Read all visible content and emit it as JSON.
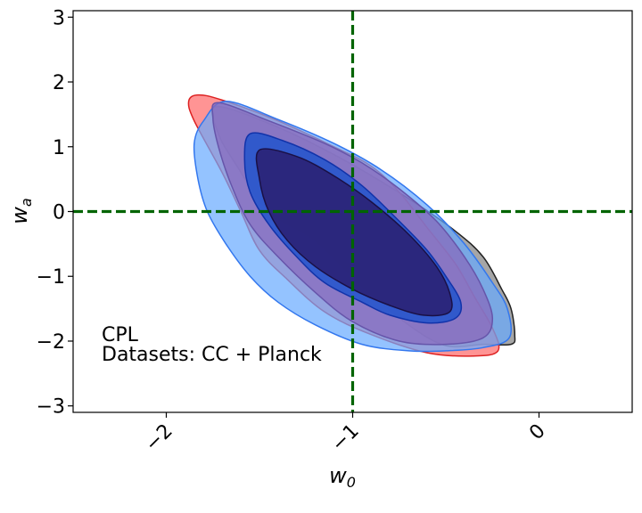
{
  "chart_data": {
    "type": "contour",
    "xlabel": "w",
    "xlabel_sub": "0",
    "ylabel": "w",
    "ylabel_sub": "a",
    "xlim": [
      -2.5,
      0.5
    ],
    "ylim": [
      -3.1,
      3.1
    ],
    "x_ticks": [
      -2,
      -1,
      0
    ],
    "x_tick_labels": [
      "−2",
      "−1",
      "0"
    ],
    "y_ticks": [
      -3,
      -2,
      -1,
      0,
      1,
      2,
      3
    ],
    "y_tick_labels": [
      "−3",
      "−2",
      "−1",
      "0",
      "1",
      "2",
      "3"
    ],
    "grid": false,
    "reference_lines": [
      {
        "orientation": "vertical",
        "value": -1,
        "color": "#006400",
        "style": "dashed"
      },
      {
        "orientation": "horizontal",
        "value": 0,
        "color": "#006400",
        "style": "dashed"
      }
    ],
    "annotations": [
      "CPL",
      "Datasets: CC + Planck"
    ],
    "series": [
      {
        "color": "#808080",
        "edge_color": "#222222",
        "level": "outer",
        "points": [
          [
            -1.73,
            1.62
          ],
          [
            -1.4,
            1.3
          ],
          [
            -1.05,
            0.8
          ],
          [
            -0.7,
            0.2
          ],
          [
            -0.45,
            -0.3
          ],
          [
            -0.3,
            -0.7
          ],
          [
            -0.2,
            -1.2
          ],
          [
            -0.15,
            -1.5
          ],
          [
            -0.13,
            -1.9
          ],
          [
            -0.15,
            -2.05
          ],
          [
            -0.3,
            -2.05
          ],
          [
            -0.5,
            -2.07
          ],
          [
            -0.7,
            -1.75
          ],
          [
            -0.95,
            -1.15
          ],
          [
            -1.2,
            -0.45
          ],
          [
            -1.45,
            0.0
          ],
          [
            -1.62,
            0.7
          ],
          [
            -1.72,
            1.2
          ]
        ]
      },
      {
        "color": "#ff6666",
        "edge_color": "#dd2222",
        "level": "outer",
        "points": [
          [
            -1.83,
            1.8
          ],
          [
            -1.7,
            1.72
          ],
          [
            -1.4,
            1.4
          ],
          [
            -1.1,
            1.0
          ],
          [
            -0.9,
            0.7
          ],
          [
            -0.75,
            0.3
          ],
          [
            -0.6,
            -0.25
          ],
          [
            -0.45,
            -0.8
          ],
          [
            -0.35,
            -1.3
          ],
          [
            -0.25,
            -1.8
          ],
          [
            -0.22,
            -2.15
          ],
          [
            -0.35,
            -2.23
          ],
          [
            -0.6,
            -2.18
          ],
          [
            -0.9,
            -1.9
          ],
          [
            -1.15,
            -1.55
          ],
          [
            -1.35,
            -1.05
          ],
          [
            -1.5,
            -0.6
          ],
          [
            -1.6,
            0.0
          ],
          [
            -1.7,
            0.6
          ],
          [
            -1.85,
            1.4
          ],
          [
            -1.88,
            1.7
          ]
        ]
      },
      {
        "color": "#66aaff",
        "edge_color": "#3377ee",
        "level": "outer",
        "points": [
          [
            -1.68,
            1.7
          ],
          [
            -1.4,
            1.42
          ],
          [
            -1.1,
            1.05
          ],
          [
            -0.85,
            0.65
          ],
          [
            -0.6,
            0.1
          ],
          [
            -0.4,
            -0.5
          ],
          [
            -0.25,
            -1.1
          ],
          [
            -0.17,
            -1.5
          ],
          [
            -0.16,
            -1.95
          ],
          [
            -0.3,
            -2.1
          ],
          [
            -0.5,
            -2.15
          ],
          [
            -0.7,
            -2.15
          ],
          [
            -0.95,
            -2.05
          ],
          [
            -1.2,
            -1.75
          ],
          [
            -1.4,
            -1.4
          ],
          [
            -1.55,
            -1.0
          ],
          [
            -1.68,
            -0.5
          ],
          [
            -1.78,
            0.0
          ],
          [
            -1.83,
            0.5
          ],
          [
            -1.85,
            1.05
          ],
          [
            -1.8,
            1.4
          ]
        ]
      },
      {
        "color": "#8866bb",
        "edge_color": "#6655aa",
        "level": "outer",
        "points": [
          [
            -1.72,
            1.68
          ],
          [
            -1.45,
            1.4
          ],
          [
            -1.15,
            1.05
          ],
          [
            -0.95,
            0.75
          ],
          [
            -0.75,
            0.35
          ],
          [
            -0.55,
            -0.15
          ],
          [
            -0.4,
            -0.7
          ],
          [
            -0.3,
            -1.2
          ],
          [
            -0.25,
            -1.65
          ],
          [
            -0.3,
            -1.95
          ],
          [
            -0.5,
            -2.05
          ],
          [
            -0.75,
            -2.0
          ],
          [
            -1.0,
            -1.7
          ],
          [
            -1.2,
            -1.25
          ],
          [
            -1.4,
            -0.7
          ],
          [
            -1.55,
            -0.2
          ],
          [
            -1.65,
            0.4
          ],
          [
            -1.72,
            1.0
          ],
          [
            -1.75,
            1.45
          ]
        ]
      },
      {
        "color": "#2255cc",
        "edge_color": "#1133aa",
        "level": "inner",
        "points": [
          [
            -1.55,
            1.2
          ],
          [
            -1.38,
            1.1
          ],
          [
            -1.15,
            0.8
          ],
          [
            -0.95,
            0.4
          ],
          [
            -0.75,
            -0.15
          ],
          [
            -0.6,
            -0.6
          ],
          [
            -0.5,
            -1.0
          ],
          [
            -0.42,
            -1.4
          ],
          [
            -0.45,
            -1.65
          ],
          [
            -0.6,
            -1.72
          ],
          [
            -0.8,
            -1.6
          ],
          [
            -0.95,
            -1.4
          ],
          [
            -1.15,
            -1.1
          ],
          [
            -1.3,
            -0.7
          ],
          [
            -1.45,
            -0.2
          ],
          [
            -1.55,
            0.3
          ],
          [
            -1.58,
            0.8
          ]
        ]
      },
      {
        "color": "#2a1f70",
        "edge_color": "#1a1045",
        "level": "inner",
        "points": [
          [
            -1.5,
            0.95
          ],
          [
            -1.3,
            0.85
          ],
          [
            -1.1,
            0.55
          ],
          [
            -0.9,
            0.15
          ],
          [
            -0.7,
            -0.35
          ],
          [
            -0.55,
            -0.85
          ],
          [
            -0.48,
            -1.25
          ],
          [
            -0.48,
            -1.55
          ],
          [
            -0.62,
            -1.6
          ],
          [
            -0.8,
            -1.45
          ],
          [
            -1.0,
            -1.2
          ],
          [
            -1.2,
            -0.85
          ],
          [
            -1.35,
            -0.45
          ],
          [
            -1.45,
            0.0
          ],
          [
            -1.5,
            0.5
          ]
        ]
      }
    ]
  }
}
